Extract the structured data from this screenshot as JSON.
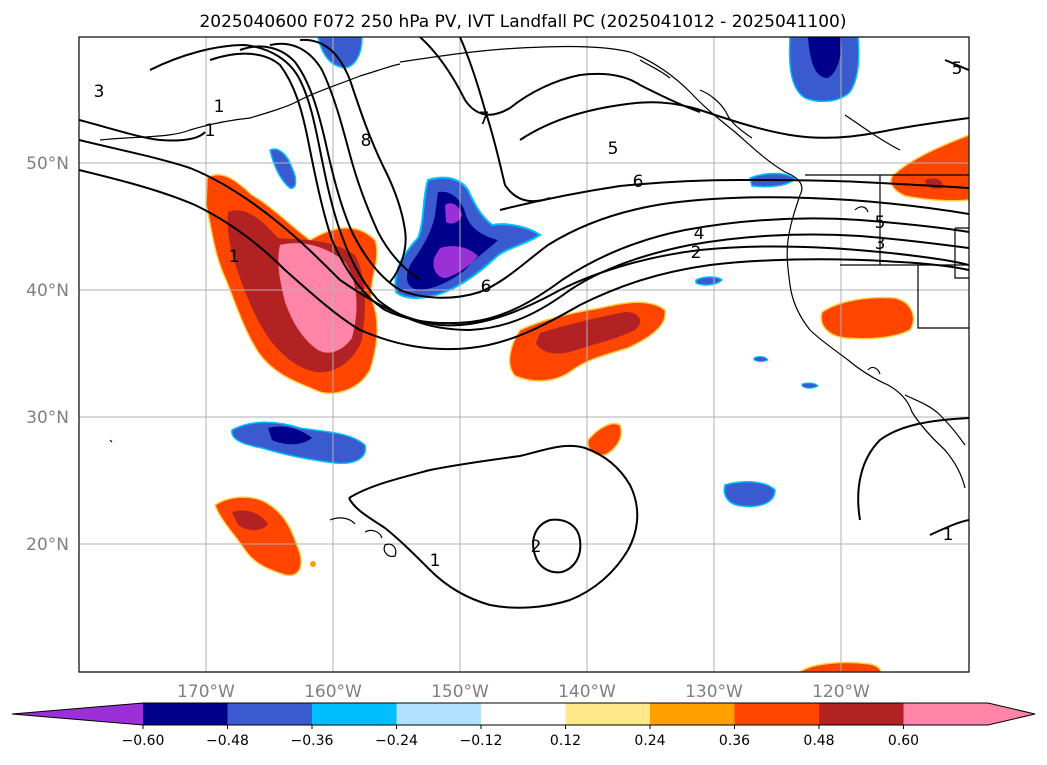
{
  "title": "2025040600 F072 250 hPa PV, IVT Landfall PC (2025041012 - 2025041100)",
  "lon_labels": [
    "170°W",
    "160°W",
    "150°W",
    "140°W",
    "130°W",
    "120°W"
  ],
  "lat_labels": [
    "50°N",
    "40°N",
    "30°N",
    "20°N"
  ],
  "colorbar": {
    "ticks": [
      "−0.60",
      "−0.48",
      "−0.36",
      "−0.24",
      "−0.12",
      "0.12",
      "0.24",
      "0.36",
      "0.48",
      "0.60"
    ],
    "colors": [
      "#9b30d8",
      "#00008b",
      "#3a5bd0",
      "#00bfff",
      "#b0e2ff",
      "#ffffff",
      "#ffe88a",
      "#ffa000",
      "#ff4500",
      "#b22222",
      "#ff85a8",
      "#ff85a8"
    ]
  },
  "contour_labels": [
    "3",
    "1",
    "1",
    "8",
    "7",
    "5",
    "6",
    "5",
    "4",
    "3",
    "2",
    "6",
    "1",
    "2",
    "1",
    "1",
    "5"
  ],
  "map": {
    "projection": "plate carree",
    "lon_range": "180°W – 110°W",
    "lat_range": "10°N – 60°N",
    "fill_variable": "IVT Landfall PC",
    "contour_variable": "250 hPa PV"
  }
}
